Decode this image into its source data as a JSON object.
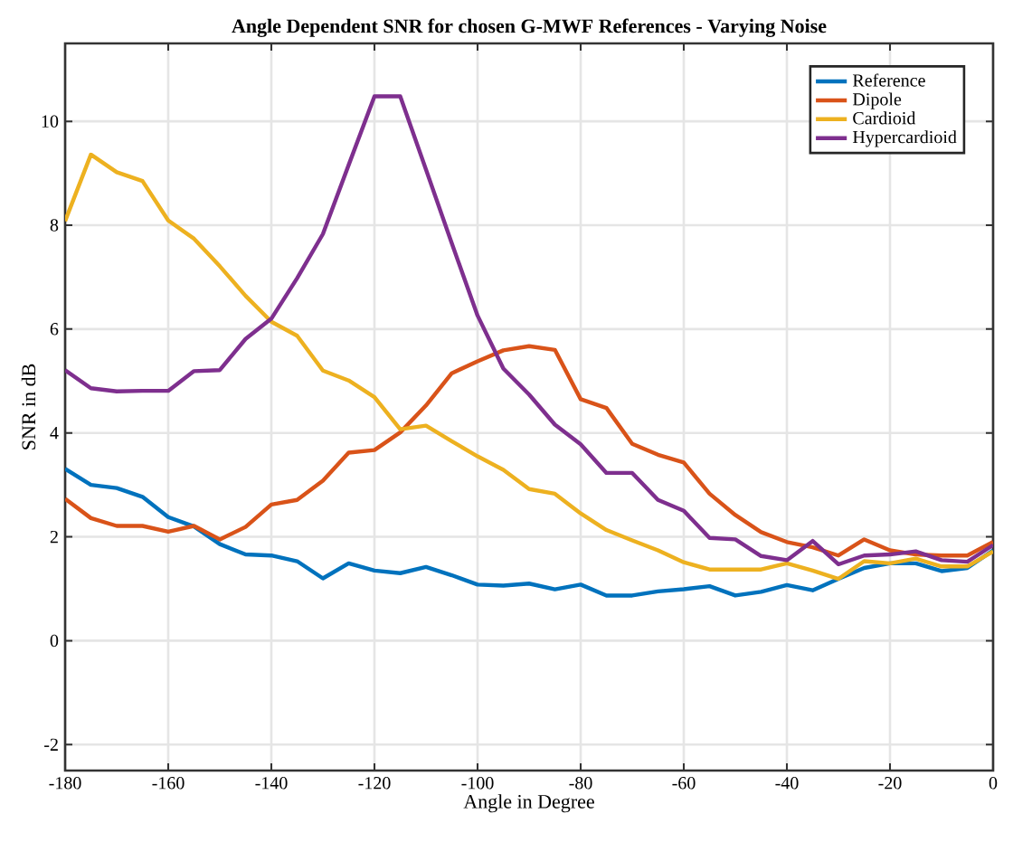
{
  "chart_data": {
    "type": "line",
    "title": "Angle Dependent SNR for chosen G-MWF References - Varying Noise",
    "xlabel": "Angle in Degree",
    "ylabel": "SNR in dB",
    "x": [
      -180,
      -175,
      -170,
      -165,
      -160,
      -155,
      -150,
      -145,
      -140,
      -135,
      -130,
      -125,
      -120,
      -115,
      -110,
      -105,
      -100,
      -95,
      -90,
      -85,
      -80,
      -75,
      -70,
      -65,
      -60,
      -55,
      -50,
      -45,
      -40,
      -35,
      -30,
      -25,
      -20,
      -15,
      -10,
      -5,
      0
    ],
    "series": [
      {
        "name": "Reference",
        "color": "#0072bd",
        "values": [
          3.31,
          3.0,
          2.94,
          2.77,
          2.38,
          2.2,
          1.86,
          1.66,
          1.64,
          1.53,
          1.2,
          1.49,
          1.35,
          1.3,
          1.42,
          1.26,
          1.08,
          1.06,
          1.1,
          0.99,
          1.08,
          0.87,
          0.87,
          0.95,
          0.99,
          1.05,
          0.87,
          0.94,
          1.07,
          0.97,
          1.19,
          1.4,
          1.49,
          1.49,
          1.34,
          1.4,
          1.74
        ]
      },
      {
        "name": "Dipole",
        "color": "#d95319",
        "values": [
          2.73,
          2.36,
          2.21,
          2.21,
          2.1,
          2.21,
          1.95,
          2.19,
          2.62,
          2.71,
          3.08,
          3.62,
          3.67,
          4.01,
          4.53,
          5.15,
          5.38,
          5.59,
          5.67,
          5.6,
          4.65,
          4.48,
          3.79,
          3.58,
          3.43,
          2.83,
          2.42,
          2.09,
          1.9,
          1.8,
          1.64,
          1.95,
          1.74,
          1.66,
          1.64,
          1.64,
          1.9
        ]
      },
      {
        "name": "Cardioid",
        "color": "#edb120",
        "values": [
          8.08,
          9.36,
          9.02,
          8.85,
          8.09,
          7.74,
          7.21,
          6.64,
          6.14,
          5.87,
          5.2,
          5.01,
          4.69,
          4.07,
          4.14,
          3.84,
          3.55,
          3.29,
          2.92,
          2.83,
          2.45,
          2.13,
          1.93,
          1.74,
          1.51,
          1.37,
          1.37,
          1.37,
          1.49,
          1.35,
          1.19,
          1.53,
          1.49,
          1.58,
          1.43,
          1.43,
          1.72
        ]
      },
      {
        "name": "Hypercardioid",
        "color": "#7e2f8e",
        "values": [
          5.21,
          4.86,
          4.8,
          4.81,
          4.81,
          5.19,
          5.21,
          5.81,
          6.2,
          6.98,
          7.83,
          9.16,
          10.48,
          10.48,
          9.07,
          7.65,
          6.26,
          5.24,
          4.74,
          4.16,
          3.78,
          3.23,
          3.23,
          2.71,
          2.5,
          1.98,
          1.95,
          1.63,
          1.55,
          1.92,
          1.47,
          1.64,
          1.66,
          1.72,
          1.55,
          1.52,
          1.84
        ]
      }
    ],
    "xlim": [
      -180,
      0
    ],
    "ylim": [
      -2.5,
      11.5
    ],
    "xticks": [
      -180,
      -160,
      -140,
      -120,
      -100,
      -80,
      -60,
      -40,
      -20,
      0
    ],
    "yticks": [
      -2,
      0,
      2,
      4,
      6,
      8,
      10
    ],
    "grid": true,
    "legend": "top right",
    "marker": "none",
    "line_style": "solid"
  }
}
